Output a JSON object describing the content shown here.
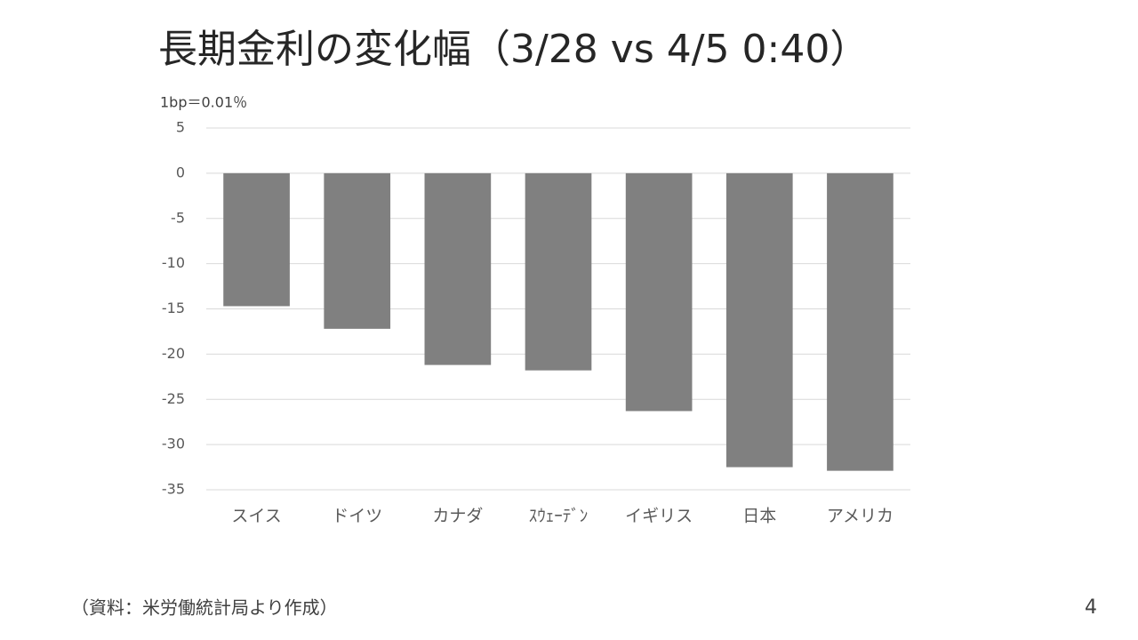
{
  "chart_data": {
    "type": "bar",
    "title": "長期金利の変化幅（3/28 vs 4/5 0:40）",
    "y_label": "1bp＝0.01％",
    "categories": [
      "スイス",
      "ドイツ",
      "カナダ",
      "ｽｳｪｰﾃﾞﾝ",
      "イギリス",
      "日本",
      "アメリカ"
    ],
    "values": [
      -14.7,
      -17.2,
      -21.2,
      -21.8,
      -26.3,
      -32.5,
      -32.9
    ],
    "color": "#808080",
    "ylim": [
      -35,
      5
    ],
    "yticks": [
      5,
      0,
      -5,
      -10,
      -15,
      -20,
      -25,
      -30,
      -35
    ],
    "grid": true
  },
  "source": "（資料：米労働統計局より作成）",
  "page_number": 4
}
